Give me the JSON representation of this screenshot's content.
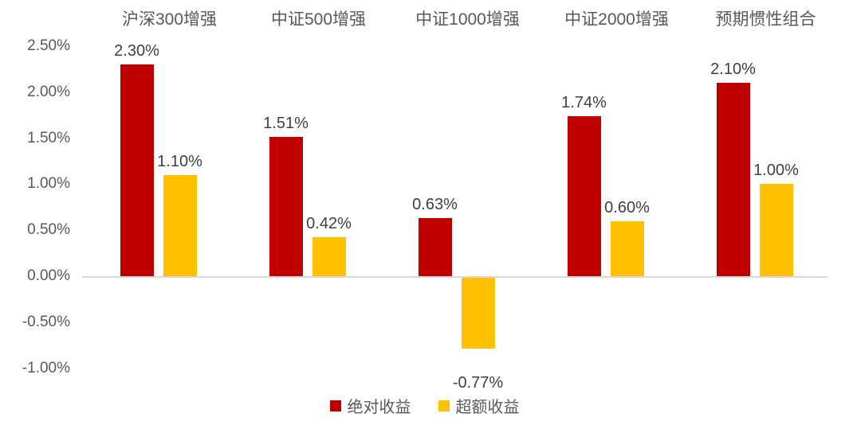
{
  "chart_data": {
    "type": "bar",
    "title": "",
    "categories": [
      "沪深300增强",
      "中证500增强",
      "中证1000增强",
      "中证2000增强",
      "预期惯性组合"
    ],
    "series": [
      {
        "name": "绝对收益",
        "color": "#c00000",
        "values": [
          2.3,
          1.51,
          0.63,
          1.74,
          2.1
        ],
        "labels": [
          "2.30%",
          "1.51%",
          "0.63%",
          "1.74%",
          "2.10%"
        ]
      },
      {
        "name": "超额收益",
        "color": "#ffc000",
        "values": [
          1.1,
          0.42,
          -0.77,
          0.6,
          1.0
        ],
        "labels": [
          "1.10%",
          "0.42%",
          "-0.77%",
          "0.60%",
          "1.00%"
        ]
      }
    ],
    "y_axis": {
      "ticks": [
        "2.50%",
        "2.00%",
        "1.50%",
        "1.00%",
        "0.50%",
        "0.00%",
        "-0.50%",
        "-1.00%"
      ],
      "tick_values": [
        2.5,
        2.0,
        1.5,
        1.0,
        0.5,
        0.0,
        -0.5,
        -1.0
      ],
      "min": -1.0,
      "max": 2.5,
      "step": 0.5
    },
    "legend": [
      {
        "label": "绝对收益",
        "color": "#c00000"
      },
      {
        "label": "超额收益",
        "color": "#ffc000"
      }
    ],
    "legend_position": "bottom",
    "grid": false,
    "axis_line_color": "#d9d9d9",
    "tick_label_color": "#595959",
    "data_label_color": "#404040"
  }
}
